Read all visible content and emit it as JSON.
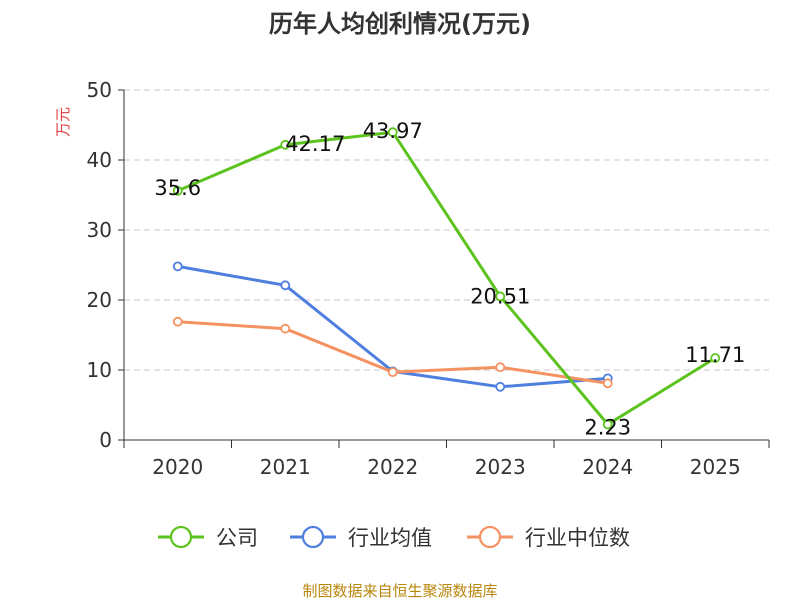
{
  "chart_data": {
    "type": "line",
    "title": "历年人均创利情况(万元)",
    "xlabel": "",
    "ylabel": "万元",
    "categories": [
      "2020",
      "2021",
      "2022",
      "2023",
      "2024",
      "2025"
    ],
    "ylim": [
      0,
      50
    ],
    "yticks": [
      "0",
      "10",
      "20",
      "30",
      "40",
      "50"
    ],
    "grid": true,
    "legend_position": "bottom",
    "series": [
      {
        "name": "公司",
        "color": "#5cc31e",
        "values": [
          35.6,
          42.17,
          43.97,
          20.51,
          2.23,
          11.71
        ],
        "labels": [
          "35.6",
          "42.17",
          "43.97",
          "20.51",
          "2.23",
          "11.71"
        ]
      },
      {
        "name": "行业均值",
        "color": "#4f7fde",
        "values": [
          24.8,
          22.1,
          9.8,
          7.6,
          8.8,
          null
        ]
      },
      {
        "name": "行业中位数",
        "color": "#f59262",
        "values": [
          16.9,
          15.9,
          9.7,
          10.4,
          8.1,
          null
        ]
      }
    ],
    "source": "制图数据来自恒生聚源数据库"
  }
}
